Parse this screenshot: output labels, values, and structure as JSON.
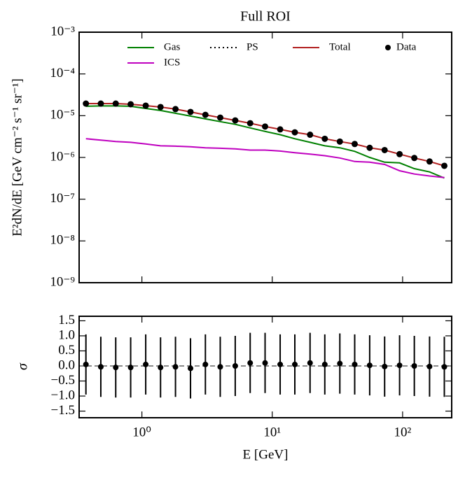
{
  "chart_data": [
    {
      "type": "line",
      "title": "Full ROI",
      "ylabel": "E²dN/dE [GeV cm⁻² s⁻¹ sr⁻¹]",
      "x": [
        0.372,
        0.484,
        0.63,
        0.82,
        1.07,
        1.39,
        1.81,
        2.36,
        3.07,
        3.99,
        5.2,
        6.77,
        8.81,
        11.5,
        14.9,
        19.5,
        25.3,
        33.0,
        42.9,
        55.9,
        72.8,
        94.8,
        123,
        161,
        209
      ],
      "series": [
        {
          "name": "Gas",
          "color": "#008000",
          "style": "line",
          "values": [
            1.68e-05,
            1.71e-05,
            1.71e-05,
            1.68e-05,
            1.49e-05,
            1.33e-05,
            1.14e-05,
            9.8e-06,
            8.4e-06,
            7.2e-06,
            6.2e-06,
            5.1e-06,
            4.2e-06,
            3.5e-06,
            2.8e-06,
            2.3e-06,
            1.9e-06,
            1.7e-06,
            1.4e-06,
            1e-06,
            7.7e-07,
            7.4e-07,
            5.4e-07,
            4.5e-07,
            3.2e-07
          ]
        },
        {
          "name": "PS",
          "color": "#000000",
          "style": "dotted",
          "values": [
            null,
            null,
            null,
            null,
            null,
            null,
            null,
            null,
            null,
            null,
            null,
            null,
            null,
            null,
            null,
            null,
            null,
            null,
            null,
            null,
            null,
            null,
            null,
            null,
            null
          ]
        },
        {
          "name": "Total",
          "color": "#b22222",
          "style": "line",
          "values": [
            1.95e-05,
            1.95e-05,
            1.95e-05,
            1.88e-05,
            1.74e-05,
            1.61e-05,
            1.44e-05,
            1.23e-05,
            1.05e-05,
            9e-06,
            7.7e-06,
            6.6e-06,
            5.5e-06,
            4.7e-06,
            4e-06,
            3.5e-06,
            2.8e-06,
            2.4e-06,
            2.1e-06,
            1.7e-06,
            1.5e-06,
            1.2e-06,
            9.7e-07,
            8e-07,
            6.3e-07
          ]
        },
        {
          "name": "Data",
          "color": "#000000",
          "style": "points",
          "values": [
            1.95e-05,
            1.95e-05,
            1.95e-05,
            1.88e-05,
            1.74e-05,
            1.61e-05,
            1.44e-05,
            1.23e-05,
            1.05e-05,
            9e-06,
            7.7e-06,
            6.6e-06,
            5.5e-06,
            4.7e-06,
            4e-06,
            3.5e-06,
            2.8e-06,
            2.4e-06,
            2.1e-06,
            1.7e-06,
            1.5e-06,
            1.2e-06,
            9.7e-07,
            8e-07,
            6.3e-07
          ]
        },
        {
          "name": "ICS",
          "color": "#bf00bf",
          "style": "line",
          "values": [
            2.8e-06,
            2.6e-06,
            2.4e-06,
            2.3e-06,
            2.1e-06,
            1.9e-06,
            1.86e-06,
            1.8e-06,
            1.7e-06,
            1.66e-06,
            1.6e-06,
            1.5e-06,
            1.5e-06,
            1.42e-06,
            1.3e-06,
            1.2e-06,
            1.1e-06,
            9.7e-07,
            8e-07,
            7.7e-07,
            6.8e-07,
            4.8e-07,
            4e-07,
            3.6e-07,
            3.3e-07
          ]
        }
      ],
      "xlim": [
        0.33,
        238
      ],
      "xscale": "log",
      "xticks": [
        1,
        10,
        100
      ],
      "ylim": [
        1e-09,
        0.001
      ],
      "yscale": "log",
      "yticks": [
        {
          "value": 1e-09,
          "label": "10⁻⁹"
        },
        {
          "value": 1e-08,
          "label": "10⁻⁸"
        },
        {
          "value": 1e-07,
          "label": "10⁻⁷"
        },
        {
          "value": 1e-06,
          "label": "10⁻⁶"
        },
        {
          "value": 1e-05,
          "label": "10⁻⁵"
        },
        {
          "value": 0.0001,
          "label": "10⁻⁴"
        },
        {
          "value": 0.001,
          "label": "10⁻³"
        }
      ],
      "legend": "upper right"
    },
    {
      "type": "errorbar",
      "ylabel": "σ",
      "xlabel": "E [GeV]",
      "x": [
        0.372,
        0.484,
        0.63,
        0.82,
        1.07,
        1.39,
        1.81,
        2.36,
        3.07,
        3.99,
        5.2,
        6.77,
        8.81,
        11.5,
        14.9,
        19.5,
        25.3,
        33.0,
        42.9,
        55.9,
        72.8,
        94.8,
        123,
        161,
        209
      ],
      "values": [
        0.05,
        -0.03,
        -0.05,
        -0.05,
        0.05,
        -0.05,
        -0.03,
        -0.08,
        0.05,
        -0.03,
        0,
        0.1,
        0.1,
        0.05,
        0.05,
        0.1,
        0.05,
        0.08,
        0.05,
        0.02,
        -0.02,
        0.02,
        0,
        -0.02,
        -0.03
      ],
      "errors": [
        1.0,
        1.0,
        1.0,
        1.0,
        1.0,
        1.0,
        1.0,
        1.0,
        1.0,
        1.0,
        1.0,
        1.0,
        1.0,
        1.0,
        1.0,
        1.0,
        1.0,
        1.0,
        1.0,
        1.0,
        1.0,
        1.0,
        1.0,
        1.0,
        1.0
      ],
      "color": "#000000",
      "xlim": [
        0.33,
        238
      ],
      "xscale": "log",
      "xticks": [
        {
          "value": 1,
          "label": "10⁰"
        },
        {
          "value": 10,
          "label": "10¹"
        },
        {
          "value": 100,
          "label": "10²"
        }
      ],
      "ylim": [
        -1.72,
        1.65
      ],
      "yticks": [
        {
          "value": -1.5,
          "label": "−1.5"
        },
        {
          "value": -1.0,
          "label": "−1.0"
        },
        {
          "value": -0.5,
          "label": "−0.5"
        },
        {
          "value": 0.0,
          "label": "0.0"
        },
        {
          "value": 0.5,
          "label": "0.5"
        },
        {
          "value": 1.0,
          "label": "1.0"
        },
        {
          "value": 1.5,
          "label": "1.5"
        }
      ]
    }
  ]
}
